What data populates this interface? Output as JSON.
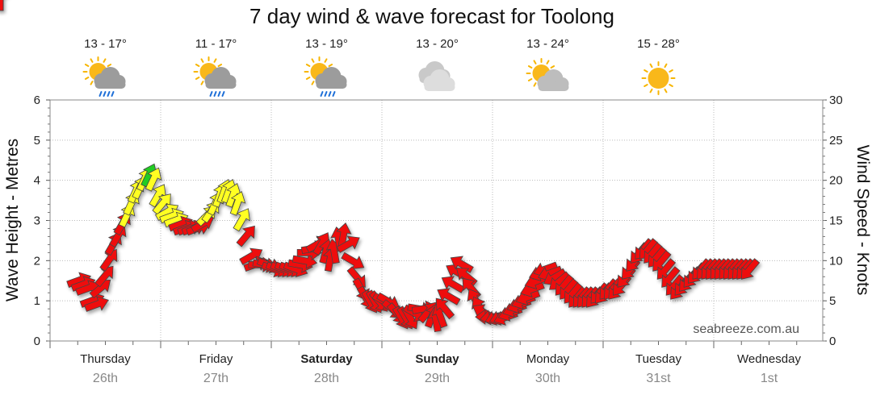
{
  "chart_data": {
    "type": "line",
    "title": "7 day wind & wave forecast for Toolong",
    "ylabel_left": "Wave Height - Metres",
    "ylabel_right": "Wind Speed - Knots",
    "ylim_left": [
      0,
      6
    ],
    "ylim_right": [
      0,
      30
    ],
    "yticks_left": [
      "0",
      "1",
      "2",
      "3",
      "4",
      "5",
      "6"
    ],
    "yticks_right": [
      "0",
      "5",
      "10",
      "15",
      "20",
      "25",
      "30"
    ],
    "grid": true,
    "watermark": "seabreeze.com.au",
    "days": [
      {
        "name": "Thursday",
        "date": "26th",
        "temp": "13 - 17°",
        "icon": "rain-cloud-sun-icon",
        "bold": false
      },
      {
        "name": "Friday",
        "date": "27th",
        "temp": "11 - 17°",
        "icon": "rain-cloud-sun-icon",
        "bold": false
      },
      {
        "name": "Saturday",
        "date": "28th",
        "temp": "13 - 19°",
        "icon": "rain-cloud-sun-icon",
        "bold": true
      },
      {
        "name": "Sunday",
        "date": "29th",
        "temp": "13 - 20°",
        "icon": "cloud-icon",
        "bold": true
      },
      {
        "name": "Monday",
        "date": "30th",
        "temp": "13 - 24°",
        "icon": "partly-cloudy-icon",
        "bold": false
      },
      {
        "name": "Tuesday",
        "date": "31st",
        "temp": "15 - 28°",
        "icon": "sun-icon",
        "bold": false
      },
      {
        "name": "Wednesday",
        "date": "1st",
        "temp": "",
        "icon": "",
        "bold": false
      }
    ],
    "wind_color_scale": {
      "under_15_knots": "#ee1111",
      "15_to_20_knots": "#ffff22",
      "over_20_knots": "#22cc22"
    },
    "wind_series": {
      "name": "Wind Speed - Knots",
      "x_day": [
        0.0,
        0.04,
        0.08,
        0.12,
        0.16,
        0.2,
        0.24,
        0.28,
        0.32,
        0.36,
        0.4,
        0.44,
        0.48,
        0.52,
        0.56,
        0.6,
        0.64,
        0.68,
        0.72,
        0.76,
        0.8,
        0.84,
        0.88,
        0.92,
        0.96,
        1.0,
        1.04,
        1.08,
        1.12,
        1.16,
        1.2,
        1.24,
        1.28,
        1.32,
        1.36,
        1.4,
        1.44,
        1.48,
        1.52,
        1.56,
        1.6,
        1.64,
        1.68,
        1.72,
        1.76,
        1.8,
        1.84,
        1.88,
        1.92,
        1.96,
        2.0,
        2.04,
        2.08,
        2.12,
        2.16,
        2.2,
        2.24,
        2.28,
        2.32,
        2.36,
        2.4,
        2.44,
        2.48,
        2.52,
        2.56,
        2.6,
        2.64,
        2.68,
        2.72,
        2.76,
        2.8,
        2.84,
        2.88,
        2.92,
        2.96,
        3.0,
        3.04,
        3.08,
        3.12,
        3.16,
        3.2,
        3.24,
        3.28,
        3.32,
        3.36,
        3.4,
        3.44,
        3.48,
        3.52,
        3.56,
        3.6,
        3.64,
        3.68,
        3.72,
        3.76,
        3.8,
        3.84,
        3.88,
        3.92,
        3.96,
        4.0,
        4.04,
        4.08,
        4.12,
        4.16,
        4.2,
        4.24,
        4.28,
        4.32,
        4.36,
        4.4,
        4.44,
        4.48,
        4.52,
        4.56,
        4.6,
        4.64,
        4.68,
        4.72,
        4.76,
        4.8,
        4.84,
        4.88,
        4.92,
        4.96,
        5.0,
        5.04,
        5.08,
        5.12,
        5.16,
        5.2,
        5.24,
        5.28,
        5.32,
        5.36,
        5.4,
        5.44,
        5.48,
        5.52,
        5.56,
        5.6,
        5.64,
        5.68,
        5.72,
        5.76,
        5.8,
        5.84,
        5.88,
        5.92,
        5.96,
        6.0,
        6.04,
        6.08,
        6.12,
        6.16,
        6.2
      ],
      "knots": [
        7.5,
        7,
        6.5,
        5,
        4.5,
        6.5,
        8,
        10,
        12,
        13,
        14.5,
        15.5,
        17,
        18.5,
        19,
        20,
        20.5,
        20,
        18,
        17,
        16,
        15.5,
        15,
        14.5,
        14,
        14,
        14,
        14,
        14.5,
        15.5,
        16,
        17,
        18,
        18.5,
        18.5,
        18,
        17,
        15,
        13,
        10.5,
        9.5,
        9.5,
        9.5,
        9.5,
        9,
        9,
        9,
        9,
        9,
        9,
        9.5,
        10,
        11,
        11.5,
        12,
        12,
        11,
        10,
        11,
        12.5,
        13,
        12,
        10,
        8,
        6.5,
        5.5,
        5,
        5,
        5,
        5,
        5,
        4,
        3.5,
        3,
        3,
        3,
        3.5,
        4,
        4,
        3.5,
        3,
        2.5,
        3,
        4,
        5.5,
        7,
        8.5,
        9.5,
        8,
        6.5,
        5,
        4,
        3.5,
        3,
        3,
        3,
        3,
        3,
        3.5,
        4,
        4.5,
        5,
        5.5,
        6.5,
        7.5,
        8.5,
        9,
        8.5,
        8,
        7.5,
        7,
        6.5,
        6,
        5.5,
        5.5,
        5.5,
        5.5,
        5.5,
        6,
        6,
        6.5,
        6.5,
        6.5,
        7,
        8,
        9,
        10,
        11,
        11.5,
        11.5,
        11,
        10.5,
        10,
        9,
        8,
        7,
        6.5,
        7,
        7.5,
        8,
        8.5,
        9,
        9,
        9,
        9,
        9,
        9,
        9,
        9,
        9,
        9,
        9,
        9,
        9,
        9,
        9
      ],
      "directions": [
        70,
        70,
        70,
        70,
        70,
        50,
        40,
        35,
        30,
        30,
        30,
        25,
        25,
        25,
        25,
        25,
        25,
        25,
        30,
        40,
        60,
        70,
        70,
        70,
        70,
        70,
        70,
        70,
        60,
        45,
        35,
        25,
        20,
        20,
        20,
        20,
        20,
        30,
        40,
        60,
        70,
        90,
        100,
        110,
        110,
        110,
        110,
        110,
        110,
        110,
        100,
        100,
        90,
        80,
        60,
        30,
        15,
        10,
        350,
        350,
        10,
        60,
        120,
        140,
        150,
        150,
        150,
        150,
        140,
        120,
        120,
        130,
        140,
        150,
        150,
        150,
        120,
        100,
        80,
        40,
        20,
        350,
        340,
        320,
        300,
        300,
        300,
        300,
        310,
        320,
        330,
        330,
        300,
        270,
        260,
        250,
        250,
        250,
        250,
        250,
        250,
        250,
        250,
        250,
        250,
        250,
        250,
        250,
        240,
        230,
        220,
        220,
        220,
        220,
        220,
        220,
        220,
        220,
        220,
        220,
        220,
        220,
        220,
        220,
        220,
        220,
        220,
        220,
        220,
        220,
        220,
        220,
        220,
        220,
        220,
        220,
        220,
        220,
        220,
        220,
        220,
        220,
        220,
        220,
        220,
        220,
        220,
        220,
        220,
        220,
        220,
        220,
        220
      ]
    }
  }
}
